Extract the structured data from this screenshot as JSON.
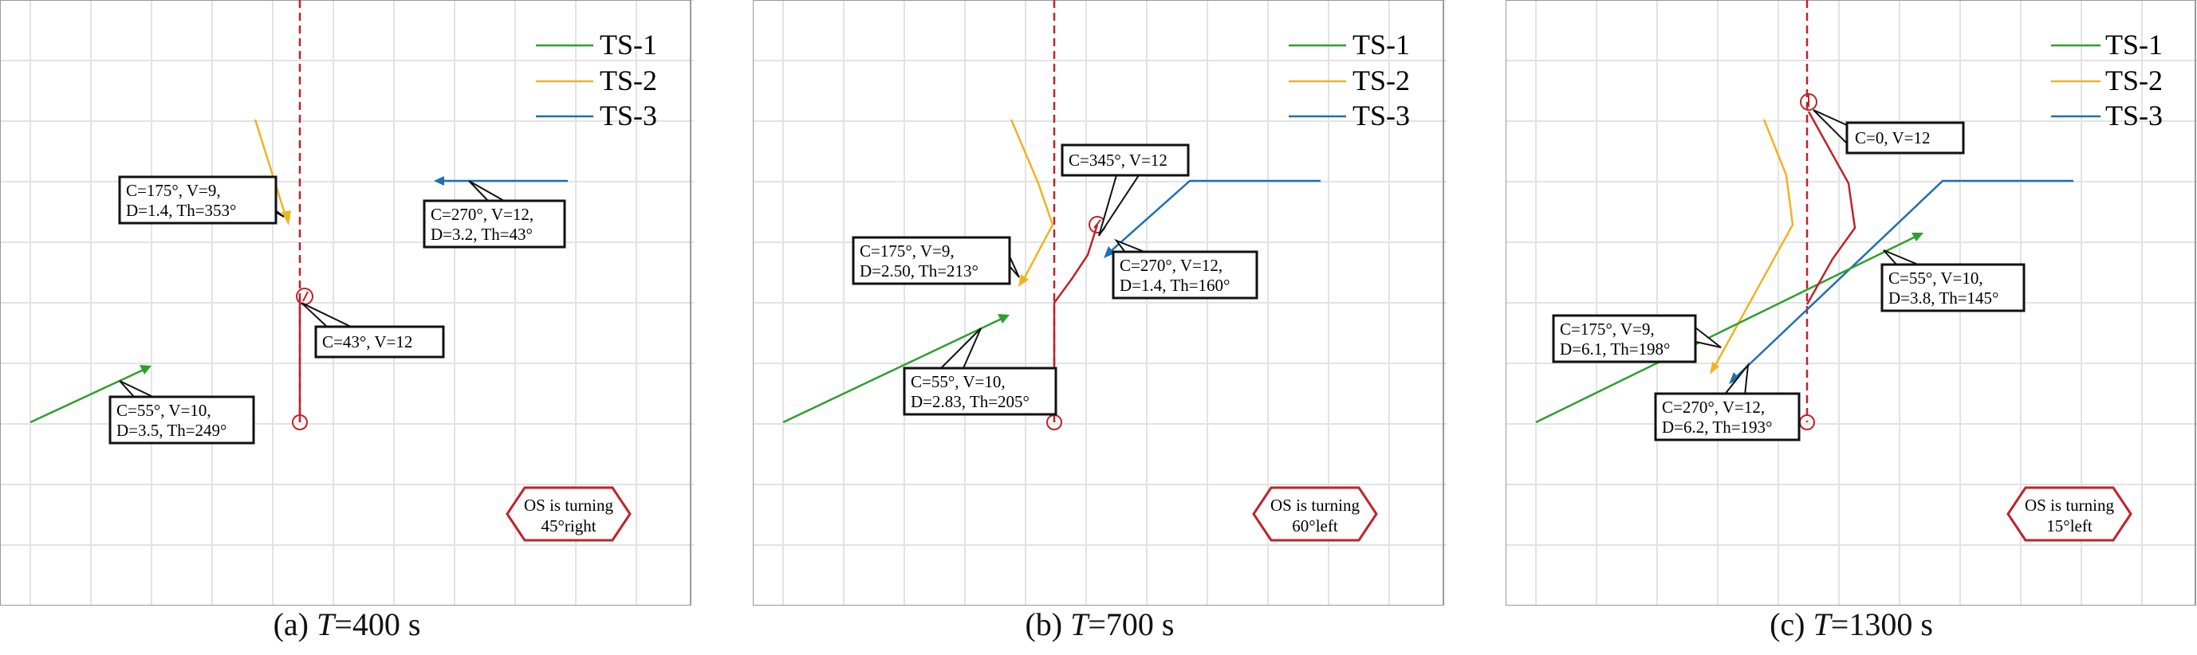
{
  "legend": [
    {
      "label": "TS-1",
      "color": "#2ca02c"
    },
    {
      "label": "TS-2",
      "color": "#f0b323"
    },
    {
      "label": "TS-3",
      "color": "#1f6fb4"
    }
  ],
  "own_ship_color": "#c0222a",
  "panels": [
    {
      "caption_prefix": "(a) ",
      "caption_var": "T",
      "caption_suffix": "=400 s",
      "status_line1": "OS is turning",
      "status_line2": "45°right",
      "boxes": [
        {
          "id": "ts2",
          "lines": [
            "C=175°, V=9,",
            "D=1.4, Th=353°"
          ]
        },
        {
          "id": "ts3",
          "lines": [
            "C=270°, V=12,",
            "D=3.2, Th=43°"
          ]
        },
        {
          "id": "os",
          "lines": [
            "C=43°, V=12"
          ]
        },
        {
          "id": "ts1",
          "lines": [
            "C=55°, V=10,",
            "D=3.5, Th=249°"
          ]
        }
      ]
    },
    {
      "caption_prefix": "(b) ",
      "caption_var": "T",
      "caption_suffix": "=700 s",
      "status_line1": "OS is turning",
      "status_line2": "60°left",
      "boxes": [
        {
          "id": "os",
          "lines": [
            "C=345°, V=12"
          ]
        },
        {
          "id": "ts2",
          "lines": [
            "C=175°, V=9,",
            "D=2.50, Th=213°"
          ]
        },
        {
          "id": "ts3",
          "lines": [
            "C=270°, V=12,",
            "D=1.4, Th=160°"
          ]
        },
        {
          "id": "ts1",
          "lines": [
            "C=55°, V=10,",
            "D=2.83, Th=205°"
          ]
        }
      ]
    },
    {
      "caption_prefix": "(c) ",
      "caption_var": "T",
      "caption_suffix": "=1300 s",
      "status_line1": "OS is turning",
      "status_line2": "15°left",
      "boxes": [
        {
          "id": "os",
          "lines": [
            "C=0, V=12"
          ]
        },
        {
          "id": "ts1",
          "lines": [
            "C=55°, V=10,",
            "D=3.8, Th=145°"
          ]
        },
        {
          "id": "ts2",
          "lines": [
            "C=175°, V=9,",
            "D=6.1, Th=198°"
          ]
        },
        {
          "id": "ts3",
          "lines": [
            "C=270°, V=12,",
            "D=6.2, Th=193°"
          ]
        }
      ]
    }
  ]
}
